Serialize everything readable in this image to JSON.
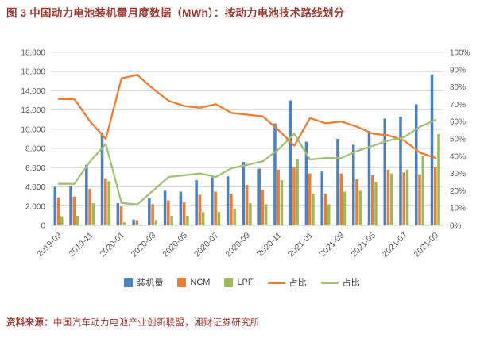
{
  "title": "图 3 中国动力电池装机量月度数据（MWh）：按动力电池技术路线划分",
  "source": {
    "label": "资料来源：",
    "text": "中国汽车动力电池产业创新联盟，湘财证券研究所"
  },
  "colors": {
    "title_red": "#9E3B32",
    "bar_blue": "#4F81BD",
    "bar_orange": "#ED7D31",
    "bar_green": "#9BBB59",
    "line_orange": "#ED7D31",
    "line_green": "#A2C177",
    "grid": "#D9D9D9",
    "axis_line": "#BFBFBF",
    "axis_text": "#595959"
  },
  "chart_data": {
    "type": "bar",
    "subtype": "grouped bars with two percentage lines on secondary axis",
    "title": "中国动力电池装机量月度数据（MWh）：按动力电池技术路线划分",
    "xlabel": "",
    "ylabel": "",
    "grid": true,
    "legend_position": "bottom",
    "categories": [
      "2019-09",
      "2019-10",
      "2019-11",
      "2019-12",
      "2020-01",
      "2020-02",
      "2020-03",
      "2020-04",
      "2020-05",
      "2020-06",
      "2020-07",
      "2020-08",
      "2020-09",
      "2020-10",
      "2020-11",
      "2020-12",
      "2021-01",
      "2021-02",
      "2021-03",
      "2021-04",
      "2021-05",
      "2021-06",
      "2021-07",
      "2021-08",
      "2021-09"
    ],
    "x_tick_labels": [
      "2019-09",
      "2019-11",
      "2020-01",
      "2020-03",
      "2020-05",
      "2020-07",
      "2020-09",
      "2020-11",
      "2021-01",
      "2021-03",
      "2021-05",
      "2021-07",
      "2021-09"
    ],
    "left_axis": {
      "min": 0,
      "max": 18000,
      "step": 2000
    },
    "right_axis": {
      "min": 0,
      "max": 100,
      "step": 10,
      "suffix": "%"
    },
    "bar_series": [
      {
        "id": "installed",
        "name": "装机量",
        "color_key": "bar_blue",
        "values": [
          4000,
          4100,
          6300,
          9700,
          2300,
          600,
          2800,
          3600,
          3500,
          4700,
          5000,
          5100,
          6600,
          5900,
          10600,
          13000,
          8700,
          5600,
          9000,
          8400,
          9800,
          11100,
          11300,
          12600,
          15700
        ]
      },
      {
        "id": "ncm",
        "name": "NCM",
        "color_key": "bar_orange",
        "values": [
          2900,
          3000,
          3800,
          4900,
          1950,
          520,
          2200,
          2600,
          2400,
          3200,
          3500,
          3300,
          4200,
          3700,
          5800,
          6000,
          5400,
          3300,
          5400,
          4800,
          5200,
          5800,
          5500,
          5300,
          6100
        ]
      },
      {
        "id": "lpf",
        "name": "LPF",
        "color_key": "bar_green",
        "values": [
          950,
          1000,
          2300,
          4600,
          310,
          70,
          550,
          1000,
          1000,
          1400,
          1400,
          1700,
          2300,
          2200,
          4700,
          6900,
          3300,
          2200,
          3500,
          3600,
          4500,
          5400,
          5800,
          7200,
          9500
        ]
      }
    ],
    "line_series": [
      {
        "id": "ncm-share",
        "name": "占比",
        "color_key": "line_orange",
        "axis": "right",
        "values": [
          73,
          73,
          60,
          50,
          85,
          87,
          79,
          72,
          69,
          68,
          70,
          65,
          64,
          63,
          55,
          46,
          62,
          59,
          60,
          57,
          53,
          52,
          49,
          42,
          39
        ]
      },
      {
        "id": "lpf-share",
        "name": "占比",
        "color_key": "line_green",
        "axis": "right",
        "values": [
          24,
          24,
          37,
          47,
          13,
          12,
          20,
          28,
          29,
          30,
          28,
          33,
          35,
          37,
          44,
          53,
          38,
          39,
          39,
          43,
          46,
          49,
          51,
          57,
          61
        ]
      }
    ]
  }
}
